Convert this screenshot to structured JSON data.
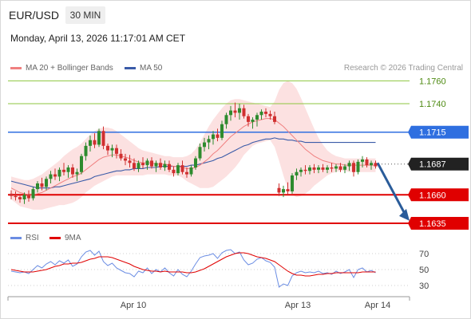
{
  "header": {
    "symbol": "EUR/USD",
    "timeframe": "30 MIN",
    "datetime": "Monday, April 13, 2026 11:17:01 AM CET"
  },
  "legend": {
    "ma20_label": "MA 20 + Bollinger Bands",
    "ma50_label": "MA 50",
    "credit": "Research © 2026 Trading Central",
    "rsi_label": "RSI",
    "rsi_ma_label": "9MA"
  },
  "colors": {
    "up_candle": "#2e8b2e",
    "down_candle": "#d03030",
    "ma20": "#f08080",
    "ma50": "#3a5ba8",
    "bollinger_fill": "#fcdcdc",
    "resistance_green": "#8dc63f",
    "pivot_blue": "#2f6fe0",
    "support_red": "#e00000",
    "current_price_tag": "#222222",
    "rsi": "#6b8de3",
    "rsi_ma": "#e00000",
    "arrow": "#2a5c9a"
  },
  "chart_data": [
    {
      "type": "candlestick",
      "title": "EUR/USD",
      "x_ticks": [
        "Apr 10",
        "Apr 13",
        "Apr 14"
      ],
      "ylim": [
        1.1628,
        1.1768
      ],
      "levels": [
        {
          "value": 1.176,
          "label": "1.1760",
          "style": "green"
        },
        {
          "value": 1.174,
          "label": "1.1740",
          "style": "green"
        },
        {
          "value": 1.1715,
          "label": "1.1715",
          "style": "blue"
        },
        {
          "value": 1.1687,
          "label": "1.1687",
          "style": "current"
        },
        {
          "value": 1.166,
          "label": "1.1660",
          "style": "red"
        },
        {
          "value": 1.1635,
          "label": "1.1635",
          "style": "red"
        }
      ],
      "current_price": 1.1687,
      "forecast": {
        "from": 1.1688,
        "to": 1.164,
        "direction": "down"
      },
      "candles": [
        [
          1.1661,
          1.1664,
          1.1656,
          1.1659
        ],
        [
          1.1659,
          1.1663,
          1.1655,
          1.1658
        ],
        [
          1.1658,
          1.1661,
          1.1653,
          1.1656
        ],
        [
          1.1656,
          1.1662,
          1.1652,
          1.166
        ],
        [
          1.166,
          1.1664,
          1.1654,
          1.1657
        ],
        [
          1.1657,
          1.1667,
          1.1655,
          1.1665
        ],
        [
          1.1665,
          1.1672,
          1.1662,
          1.167
        ],
        [
          1.167,
          1.1675,
          1.1664,
          1.1667
        ],
        [
          1.1667,
          1.1676,
          1.1664,
          1.1674
        ],
        [
          1.1674,
          1.1681,
          1.167,
          1.1678
        ],
        [
          1.1678,
          1.1683,
          1.1673,
          1.1676
        ],
        [
          1.1676,
          1.1684,
          1.1672,
          1.1682
        ],
        [
          1.1682,
          1.1688,
          1.1677,
          1.168
        ],
        [
          1.168,
          1.1686,
          1.1675,
          1.1684
        ],
        [
          1.1684,
          1.1687,
          1.1675,
          1.1678
        ],
        [
          1.1678,
          1.1683,
          1.1672,
          1.168
        ],
        [
          1.168,
          1.1696,
          1.1678,
          1.1694
        ],
        [
          1.1694,
          1.1706,
          1.169,
          1.1703
        ],
        [
          1.1703,
          1.1712,
          1.1698,
          1.1708
        ],
        [
          1.1708,
          1.1714,
          1.1701,
          1.1704
        ],
        [
          1.1704,
          1.1718,
          1.1702,
          1.1716
        ],
        [
          1.1716,
          1.172,
          1.17,
          1.1703
        ],
        [
          1.1703,
          1.1705,
          1.1695,
          1.1699
        ],
        [
          1.1699,
          1.1704,
          1.1693,
          1.1701
        ],
        [
          1.1701,
          1.1704,
          1.1692,
          1.1696
        ],
        [
          1.1696,
          1.17,
          1.169,
          1.1692
        ],
        [
          1.1692,
          1.1696,
          1.1686,
          1.169
        ],
        [
          1.169,
          1.1695,
          1.1684,
          1.1688
        ],
        [
          1.1688,
          1.1692,
          1.1681,
          1.1683
        ],
        [
          1.1683,
          1.169,
          1.168,
          1.1688
        ],
        [
          1.1688,
          1.1693,
          1.1683,
          1.1686
        ],
        [
          1.1686,
          1.1692,
          1.1682,
          1.169
        ],
        [
          1.169,
          1.1693,
          1.1683,
          1.1685
        ],
        [
          1.1685,
          1.169,
          1.168,
          1.1688
        ],
        [
          1.1688,
          1.1692,
          1.1682,
          1.1684
        ],
        [
          1.1684,
          1.169,
          1.1681,
          1.1687
        ],
        [
          1.1687,
          1.169,
          1.168,
          1.1682
        ],
        [
          1.1682,
          1.1685,
          1.1676,
          1.1679
        ],
        [
          1.1679,
          1.1688,
          1.1677,
          1.1686
        ],
        [
          1.1686,
          1.169,
          1.1678,
          1.168
        ],
        [
          1.168,
          1.1684,
          1.1675,
          1.1678
        ],
        [
          1.1678,
          1.1686,
          1.1676,
          1.1684
        ],
        [
          1.1684,
          1.1694,
          1.1682,
          1.1692
        ],
        [
          1.1692,
          1.1705,
          1.169,
          1.1702
        ],
        [
          1.1702,
          1.171,
          1.1698,
          1.1706
        ],
        [
          1.1706,
          1.1712,
          1.17,
          1.1709
        ],
        [
          1.1709,
          1.1716,
          1.1704,
          1.1713
        ],
        [
          1.1713,
          1.1718,
          1.1707,
          1.171
        ],
        [
          1.171,
          1.1725,
          1.1708,
          1.1722
        ],
        [
          1.1722,
          1.1732,
          1.1718,
          1.173
        ],
        [
          1.173,
          1.1738,
          1.1725,
          1.1734
        ],
        [
          1.1734,
          1.1741,
          1.1728,
          1.1732
        ],
        [
          1.1732,
          1.174,
          1.1726,
          1.1736
        ],
        [
          1.1736,
          1.1739,
          1.1727,
          1.1729
        ],
        [
          1.1729,
          1.1731,
          1.172,
          1.1724
        ],
        [
          1.1724,
          1.1728,
          1.1718,
          1.1726
        ],
        [
          1.1726,
          1.1732,
          1.172,
          1.173
        ],
        [
          1.173,
          1.1735,
          1.1726,
          1.1733
        ],
        [
          1.1733,
          1.1736,
          1.1728,
          1.1731
        ],
        [
          1.1731,
          1.1734,
          1.1726,
          1.1729
        ],
        [
          1.1729,
          1.1733,
          1.1722,
          1.1724
        ],
        [
          1.1666,
          1.167,
          1.1659,
          1.1662
        ],
        [
          1.1662,
          1.1668,
          1.1658,
          1.1665
        ],
        [
          1.1665,
          1.1671,
          1.166,
          1.1663
        ],
        [
          1.1663,
          1.1679,
          1.1661,
          1.1677
        ],
        [
          1.1677,
          1.1683,
          1.1673,
          1.168
        ],
        [
          1.168,
          1.1684,
          1.1676,
          1.1682
        ],
        [
          1.1682,
          1.1686,
          1.1678,
          1.1681
        ],
        [
          1.1681,
          1.1686,
          1.1678,
          1.1684
        ],
        [
          1.1684,
          1.1687,
          1.1679,
          1.1682
        ],
        [
          1.1682,
          1.1686,
          1.1679,
          1.1684
        ],
        [
          1.1684,
          1.1687,
          1.168,
          1.1682
        ],
        [
          1.1682,
          1.1686,
          1.1679,
          1.1684
        ],
        [
          1.1684,
          1.1688,
          1.168,
          1.1683
        ],
        [
          1.1683,
          1.1687,
          1.168,
          1.1685
        ],
        [
          1.1685,
          1.1688,
          1.168,
          1.1682
        ],
        [
          1.1682,
          1.1687,
          1.1679,
          1.1685
        ],
        [
          1.1685,
          1.169,
          1.1681,
          1.1688
        ],
        [
          1.1688,
          1.169,
          1.1676,
          1.168
        ],
        [
          1.168,
          1.1691,
          1.1678,
          1.1689
        ],
        [
          1.1689,
          1.1694,
          1.1684,
          1.1691
        ],
        [
          1.1691,
          1.1693,
          1.1684,
          1.1686
        ],
        [
          1.1686,
          1.169,
          1.1682,
          1.1688
        ],
        [
          1.1688,
          1.169,
          1.1683,
          1.1685
        ]
      ],
      "ma20": [
        1.1666,
        1.1664,
        1.1662,
        1.1661,
        1.166,
        1.166,
        1.1661,
        1.1662,
        1.1664,
        1.1666,
        1.1668,
        1.167,
        1.1672,
        1.1674,
        1.1676,
        1.1677,
        1.1679,
        1.1682,
        1.1685,
        1.1688,
        1.1691,
        1.1693,
        1.1694,
        1.1695,
        1.1695,
        1.1694,
        1.1693,
        1.1692,
        1.169,
        1.1689,
        1.1688,
        1.1688,
        1.1688,
        1.1687,
        1.1687,
        1.1687,
        1.1686,
        1.1685,
        1.1685,
        1.1684,
        1.1683,
        1.1683,
        1.1684,
        1.1686,
        1.1689,
        1.1692,
        1.1696,
        1.1699,
        1.1703,
        1.1707,
        1.1711,
        1.1714,
        1.1717,
        1.172,
        1.1722,
        1.1724,
        1.1725,
        1.1726,
        1.1727,
        1.1727,
        1.1726,
        1.1723,
        1.172,
        1.1716,
        1.1712,
        1.1708,
        1.1704,
        1.17,
        1.1697,
        1.1694,
        1.1692,
        1.169,
        1.1689,
        1.1688,
        1.1687,
        1.1687,
        1.1686,
        1.1686,
        1.1686,
        1.1686,
        1.1686,
        1.1686,
        1.1686,
        1.1686
      ],
      "ma50": [
        1.1672,
        1.1671,
        1.167,
        1.1669,
        1.1668,
        1.1667,
        1.1666,
        1.1666,
        1.1666,
        1.1666,
        1.1667,
        1.1667,
        1.1668,
        1.1669,
        1.167,
        1.1671,
        1.1672,
        1.1673,
        1.1674,
        1.1676,
        1.1677,
        1.1678,
        1.1679,
        1.168,
        1.1681,
        1.1681,
        1.1682,
        1.1682,
        1.1683,
        1.1683,
        1.1683,
        1.1684,
        1.1684,
        1.1684,
        1.1685,
        1.1685,
        1.1685,
        1.1685,
        1.1685,
        1.1685,
        1.1685,
        1.1686,
        1.1686,
        1.1687,
        1.1688,
        1.1689,
        1.169,
        1.1692,
        1.1693,
        1.1695,
        1.1697,
        1.1699,
        1.1701,
        1.1703,
        1.1704,
        1.1706,
        1.1707,
        1.1708,
        1.1709,
        1.1709,
        1.171,
        1.1709,
        1.1709,
        1.1708,
        1.1708,
        1.1707,
        1.1707,
        1.1706,
        1.1706,
        1.1706,
        1.1706,
        1.1706,
        1.1706,
        1.1706,
        1.1706,
        1.1706,
        1.1706,
        1.1706,
        1.1706,
        1.1706,
        1.1706,
        1.1706,
        1.1706,
        1.1706
      ],
      "bb_upper": [
        1.1676,
        1.1675,
        1.1674,
        1.1673,
        1.1673,
        1.1674,
        1.1676,
        1.1678,
        1.1681,
        1.1684,
        1.1687,
        1.169,
        1.1694,
        1.1697,
        1.17,
        1.1702,
        1.1705,
        1.1709,
        1.1713,
        1.1716,
        1.1718,
        1.1719,
        1.1719,
        1.1718,
        1.1716,
        1.1713,
        1.171,
        1.1707,
        1.1704,
        1.1701,
        1.1699,
        1.1698,
        1.1697,
        1.1696,
        1.1695,
        1.1694,
        1.1694,
        1.1693,
        1.1693,
        1.1693,
        1.1694,
        1.1696,
        1.17,
        1.1706,
        1.1713,
        1.172,
        1.1726,
        1.1731,
        1.1736,
        1.174,
        1.1743,
        1.1744,
        1.1744,
        1.1743,
        1.1742,
        1.1741,
        1.174,
        1.1739,
        1.1738,
        1.1737,
        1.1742,
        1.1752,
        1.1758,
        1.176,
        1.1758,
        1.1753,
        1.1745,
        1.1736,
        1.1727,
        1.1718,
        1.171,
        1.1704,
        1.1699,
        1.1696,
        1.1694,
        1.1693,
        1.1692,
        1.1692,
        1.1692,
        1.1692,
        1.1692,
        1.1692,
        1.1692,
        1.1692
      ],
      "bb_lower": [
        1.1656,
        1.1653,
        1.165,
        1.1649,
        1.1648,
        1.1647,
        1.1647,
        1.1647,
        1.1648,
        1.1649,
        1.165,
        1.1651,
        1.1651,
        1.1652,
        1.1653,
        1.1655,
        1.1658,
        1.1662,
        1.1665,
        1.1668,
        1.167,
        1.1672,
        1.1674,
        1.1676,
        1.1677,
        1.1677,
        1.1677,
        1.1677,
        1.1677,
        1.1677,
        1.1677,
        1.1678,
        1.1678,
        1.1678,
        1.1678,
        1.1678,
        1.1677,
        1.1677,
        1.1677,
        1.1675,
        1.1672,
        1.167,
        1.1668,
        1.1666,
        1.1666,
        1.1666,
        1.1667,
        1.167,
        1.1673,
        1.1676,
        1.168,
        1.1684,
        1.1689,
        1.1695,
        1.1699,
        1.1703,
        1.1705,
        1.1706,
        1.1707,
        1.1708,
        1.1702,
        1.169,
        1.1677,
        1.1665,
        1.166,
        1.1658,
        1.1659,
        1.1661,
        1.1664,
        1.1668,
        1.1671,
        1.1674,
        1.1677,
        1.1679,
        1.168,
        1.1681,
        1.1681,
        1.168,
        1.168,
        1.168,
        1.168,
        1.168,
        1.168,
        1.168
      ]
    },
    {
      "type": "line",
      "title": "RSI",
      "ylim": [
        20,
        80
      ],
      "y_ticks": [
        70,
        50,
        30
      ],
      "series": [
        {
          "name": "RSI",
          "values": [
            48,
            47,
            46,
            47,
            45,
            50,
            55,
            52,
            57,
            60,
            56,
            61,
            58,
            62,
            54,
            57,
            66,
            72,
            74,
            68,
            73,
            60,
            55,
            58,
            52,
            49,
            46,
            45,
            41,
            48,
            46,
            52,
            45,
            50,
            47,
            52,
            46,
            42,
            50,
            44,
            41,
            48,
            57,
            65,
            67,
            68,
            70,
            64,
            71,
            74,
            75,
            70,
            72,
            62,
            56,
            58,
            63,
            65,
            61,
            59,
            53,
            28,
            32,
            30,
            42,
            46,
            48,
            46,
            47,
            46,
            48,
            45,
            46,
            44,
            48,
            45,
            47,
            50,
            40,
            50,
            52,
            47,
            49,
            46
          ]
        },
        {
          "name": "9MA",
          "values": [
            50,
            49,
            48,
            47,
            47,
            47,
            48,
            49,
            50,
            52,
            54,
            55,
            57,
            57,
            58,
            58,
            59,
            61,
            63,
            64,
            66,
            66,
            66,
            65,
            63,
            61,
            59,
            57,
            54,
            52,
            50,
            49,
            48,
            48,
            47,
            48,
            47,
            47,
            47,
            47,
            46,
            46,
            47,
            49,
            51,
            54,
            57,
            60,
            63,
            66,
            68,
            70,
            71,
            71,
            70,
            68,
            66,
            65,
            64,
            62,
            60,
            56,
            52,
            48,
            45,
            43,
            43,
            42,
            42,
            43,
            44,
            44,
            45,
            45,
            46,
            46,
            46,
            46,
            46,
            46,
            47,
            47,
            47,
            47
          ]
        }
      ]
    }
  ]
}
